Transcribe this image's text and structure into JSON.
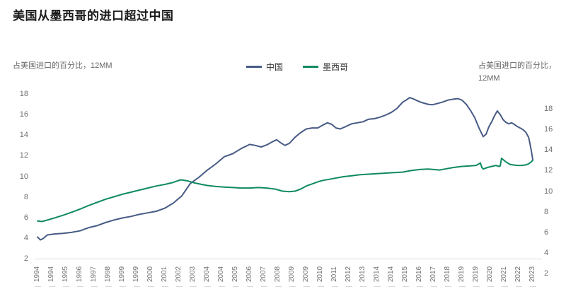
{
  "title": "美国从墨西哥的进口超过中国",
  "left_axis_caption": "占美国进口的百分比，12MM",
  "right_axis_caption_line1": "占美国进口的百分比，",
  "right_axis_caption_line2": "12MM",
  "legend": {
    "china": "中国",
    "mexico": "墨西哥"
  },
  "colors": {
    "china": "#475b84",
    "mexico": "#0f8a62",
    "title_text": "#1c1c1c",
    "axis_text": "#6f6f6f",
    "baseline": "#dcdcdc"
  },
  "chart_data": {
    "type": "line",
    "title": "美国从墨西哥的进口超过中国",
    "ylabel_left": "占美国进口的百分比，12MM",
    "ylabel_right": "占美国进口的百分比，12MM",
    "grid": false,
    "legend_position": "top-center",
    "left_axis_ticks": [
      18,
      16,
      14,
      12,
      10,
      8,
      6,
      4,
      2
    ],
    "right_axis_ticks": [
      18,
      16,
      14,
      12,
      10,
      8,
      6,
      4,
      2
    ],
    "left_axis_range": [
      2,
      18
    ],
    "right_axis_range": [
      2,
      18
    ],
    "x_range_years": [
      1994,
      2023.25
    ],
    "x_tick_labels": [
      "1994",
      "1994",
      "1995",
      "1996",
      "1997",
      "1998",
      "1999",
      "1999",
      "2000",
      "2001",
      "2002",
      "2003",
      "2004",
      "2004",
      "2005",
      "2006",
      "2007",
      "2008",
      "2009",
      "2009",
      "2010",
      "2011",
      "2012",
      "2013",
      "2014",
      "2014",
      "2015",
      "2016",
      "2017",
      "2018",
      "2019",
      "2019",
      "2020",
      "2021",
      "2022",
      "2023"
    ],
    "series": [
      {
        "name": "中国",
        "axis": "left",
        "color_key": "china",
        "points": [
          [
            1994.0,
            4.1
          ],
          [
            1994.17,
            3.82
          ],
          [
            1994.33,
            3.95
          ],
          [
            1994.58,
            4.3
          ],
          [
            1995.0,
            4.4
          ],
          [
            1995.5,
            4.45
          ],
          [
            1996.0,
            4.55
          ],
          [
            1996.5,
            4.7
          ],
          [
            1997.0,
            5.0
          ],
          [
            1997.5,
            5.2
          ],
          [
            1998.0,
            5.5
          ],
          [
            1998.5,
            5.75
          ],
          [
            1999.0,
            5.95
          ],
          [
            1999.5,
            6.1
          ],
          [
            2000.0,
            6.3
          ],
          [
            2000.5,
            6.45
          ],
          [
            2001.0,
            6.6
          ],
          [
            2001.5,
            6.9
          ],
          [
            2002.0,
            7.4
          ],
          [
            2002.5,
            8.1
          ],
          [
            2003.0,
            9.3
          ],
          [
            2003.5,
            9.9
          ],
          [
            2004.0,
            10.6
          ],
          [
            2004.5,
            11.2
          ],
          [
            2005.0,
            11.9
          ],
          [
            2005.5,
            12.2
          ],
          [
            2006.0,
            12.7
          ],
          [
            2006.5,
            13.1
          ],
          [
            2006.83,
            13.0
          ],
          [
            2007.17,
            12.85
          ],
          [
            2007.5,
            13.05
          ],
          [
            2007.83,
            13.35
          ],
          [
            2008.08,
            13.55
          ],
          [
            2008.33,
            13.25
          ],
          [
            2008.58,
            13.0
          ],
          [
            2008.83,
            13.2
          ],
          [
            2009.17,
            13.8
          ],
          [
            2009.5,
            14.25
          ],
          [
            2009.83,
            14.6
          ],
          [
            2010.17,
            14.7
          ],
          [
            2010.5,
            14.7
          ],
          [
            2010.83,
            15.0
          ],
          [
            2011.08,
            15.2
          ],
          [
            2011.33,
            15.05
          ],
          [
            2011.58,
            14.7
          ],
          [
            2011.83,
            14.6
          ],
          [
            2012.17,
            14.85
          ],
          [
            2012.5,
            15.1
          ],
          [
            2012.83,
            15.2
          ],
          [
            2013.17,
            15.3
          ],
          [
            2013.5,
            15.55
          ],
          [
            2013.83,
            15.6
          ],
          [
            2014.17,
            15.75
          ],
          [
            2014.5,
            15.95
          ],
          [
            2014.83,
            16.2
          ],
          [
            2015.17,
            16.6
          ],
          [
            2015.5,
            17.2
          ],
          [
            2015.75,
            17.45
          ],
          [
            2015.92,
            17.65
          ],
          [
            2016.17,
            17.5
          ],
          [
            2016.42,
            17.3
          ],
          [
            2016.67,
            17.15
          ],
          [
            2017.0,
            17.0
          ],
          [
            2017.25,
            16.95
          ],
          [
            2017.5,
            17.05
          ],
          [
            2017.83,
            17.2
          ],
          [
            2018.17,
            17.4
          ],
          [
            2018.5,
            17.5
          ],
          [
            2018.75,
            17.55
          ],
          [
            2019.0,
            17.4
          ],
          [
            2019.25,
            17.0
          ],
          [
            2019.5,
            16.4
          ],
          [
            2019.75,
            15.7
          ],
          [
            2020.0,
            14.7
          ],
          [
            2020.25,
            13.85
          ],
          [
            2020.42,
            14.1
          ],
          [
            2020.58,
            14.8
          ],
          [
            2020.75,
            15.3
          ],
          [
            2020.92,
            15.9
          ],
          [
            2021.08,
            16.35
          ],
          [
            2021.25,
            16.0
          ],
          [
            2021.42,
            15.5
          ],
          [
            2021.58,
            15.25
          ],
          [
            2021.75,
            15.1
          ],
          [
            2021.92,
            15.2
          ],
          [
            2022.08,
            15.05
          ],
          [
            2022.25,
            14.85
          ],
          [
            2022.42,
            14.7
          ],
          [
            2022.58,
            14.55
          ],
          [
            2022.75,
            14.3
          ],
          [
            2022.92,
            13.8
          ],
          [
            2023.0,
            13.2
          ],
          [
            2023.08,
            12.5
          ],
          [
            2023.17,
            11.6
          ]
        ]
      },
      {
        "name": "墨西哥",
        "axis": "right",
        "color_key": "mexico",
        "points": [
          [
            1994.0,
            7.1
          ],
          [
            1994.25,
            7.05
          ],
          [
            1994.5,
            7.15
          ],
          [
            1995.0,
            7.4
          ],
          [
            1995.5,
            7.65
          ],
          [
            1996.0,
            7.95
          ],
          [
            1996.5,
            8.25
          ],
          [
            1997.0,
            8.6
          ],
          [
            1997.5,
            8.9
          ],
          [
            1998.0,
            9.2
          ],
          [
            1998.5,
            9.45
          ],
          [
            1999.0,
            9.7
          ],
          [
            1999.5,
            9.9
          ],
          [
            2000.0,
            10.1
          ],
          [
            2000.5,
            10.3
          ],
          [
            2001.0,
            10.5
          ],
          [
            2001.5,
            10.65
          ],
          [
            2002.0,
            10.85
          ],
          [
            2002.42,
            11.1
          ],
          [
            2002.83,
            11.0
          ],
          [
            2003.25,
            10.8
          ],
          [
            2003.67,
            10.65
          ],
          [
            2004.0,
            10.55
          ],
          [
            2004.5,
            10.45
          ],
          [
            2005.0,
            10.4
          ],
          [
            2005.5,
            10.35
          ],
          [
            2006.0,
            10.3
          ],
          [
            2006.5,
            10.3
          ],
          [
            2007.0,
            10.35
          ],
          [
            2007.5,
            10.3
          ],
          [
            2008.0,
            10.2
          ],
          [
            2008.42,
            10.0
          ],
          [
            2008.83,
            9.95
          ],
          [
            2009.17,
            10.0
          ],
          [
            2009.5,
            10.2
          ],
          [
            2009.83,
            10.5
          ],
          [
            2010.17,
            10.7
          ],
          [
            2010.5,
            10.9
          ],
          [
            2010.83,
            11.05
          ],
          [
            2011.17,
            11.15
          ],
          [
            2011.5,
            11.25
          ],
          [
            2012.0,
            11.4
          ],
          [
            2012.5,
            11.5
          ],
          [
            2013.0,
            11.6
          ],
          [
            2013.5,
            11.65
          ],
          [
            2014.0,
            11.7
          ],
          [
            2014.5,
            11.75
          ],
          [
            2015.0,
            11.8
          ],
          [
            2015.5,
            11.85
          ],
          [
            2016.0,
            12.0
          ],
          [
            2016.5,
            12.1
          ],
          [
            2017.0,
            12.15
          ],
          [
            2017.33,
            12.1
          ],
          [
            2017.67,
            12.05
          ],
          [
            2018.0,
            12.15
          ],
          [
            2018.5,
            12.3
          ],
          [
            2019.0,
            12.4
          ],
          [
            2019.5,
            12.45
          ],
          [
            2019.83,
            12.5
          ],
          [
            2020.0,
            12.65
          ],
          [
            2020.08,
            12.75
          ],
          [
            2020.17,
            12.3
          ],
          [
            2020.25,
            12.15
          ],
          [
            2020.5,
            12.3
          ],
          [
            2020.75,
            12.4
          ],
          [
            2021.0,
            12.5
          ],
          [
            2021.17,
            12.4
          ],
          [
            2021.25,
            12.45
          ],
          [
            2021.33,
            13.2
          ],
          [
            2021.5,
            12.95
          ],
          [
            2021.67,
            12.75
          ],
          [
            2021.83,
            12.6
          ],
          [
            2022.0,
            12.55
          ],
          [
            2022.25,
            12.5
          ],
          [
            2022.5,
            12.5
          ],
          [
            2022.75,
            12.55
          ],
          [
            2022.92,
            12.65
          ],
          [
            2023.08,
            12.85
          ],
          [
            2023.17,
            13.0
          ]
        ]
      }
    ]
  }
}
